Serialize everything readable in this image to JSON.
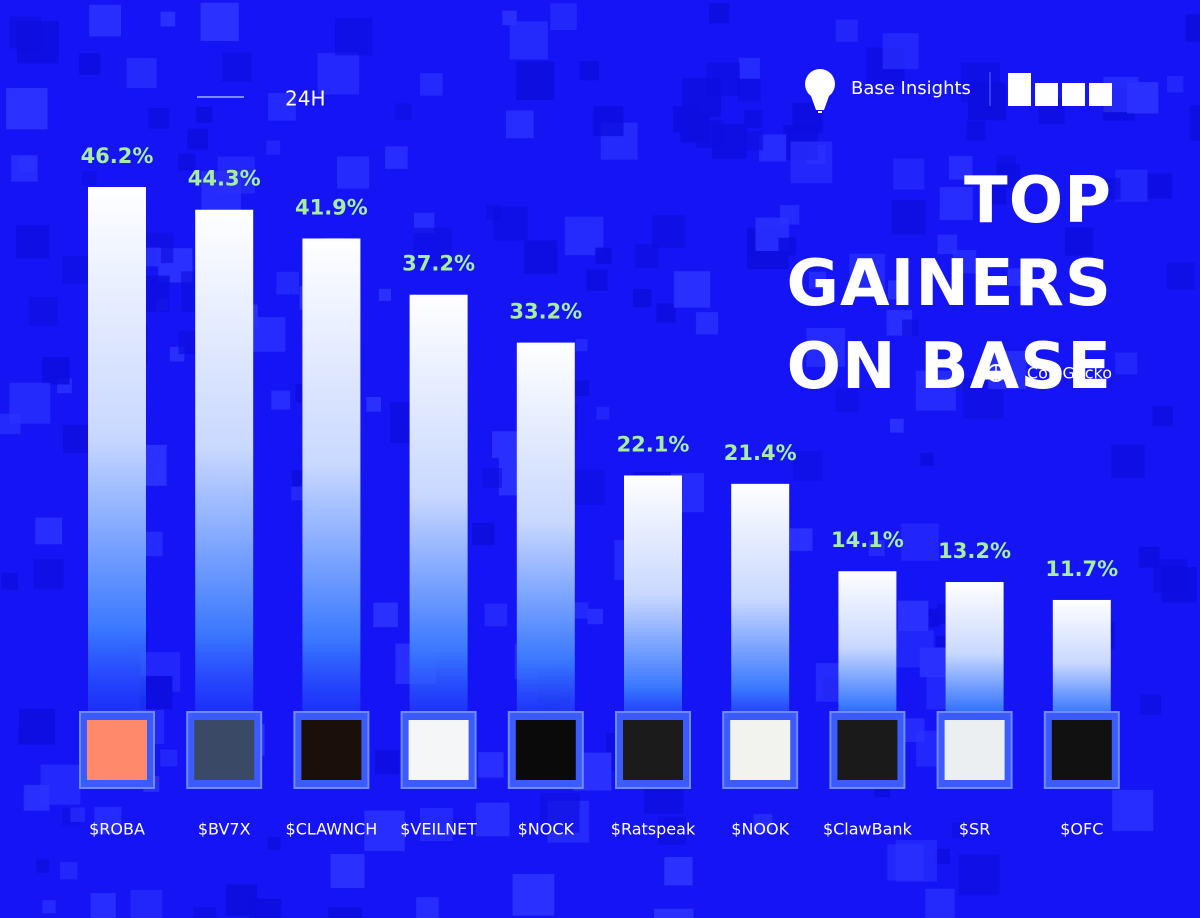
{
  "chart_data": {
    "type": "bar",
    "title": "TOP GAINERS ON BASE",
    "period": "24H",
    "brand": "Base Insights",
    "source": "CoinGecko",
    "categories": [
      "$ROBA",
      "$BV7X",
      "$CLAWNCH",
      "$VEILNET",
      "$NOCK",
      "$Ratspeak",
      "$NOOK",
      "$ClawBank",
      "$SR",
      "$OFC"
    ],
    "values": [
      46.2,
      44.3,
      41.9,
      37.2,
      33.2,
      22.1,
      21.4,
      14.1,
      13.2,
      11.7
    ],
    "value_labels": [
      "46.2%",
      "44.3%",
      "41.9%",
      "37.2%",
      "33.2%",
      "22.1%",
      "21.4%",
      "14.1%",
      "13.2%",
      "11.7%"
    ],
    "color": "#ffffff",
    "label_color": "#a8eea0"
  }
}
